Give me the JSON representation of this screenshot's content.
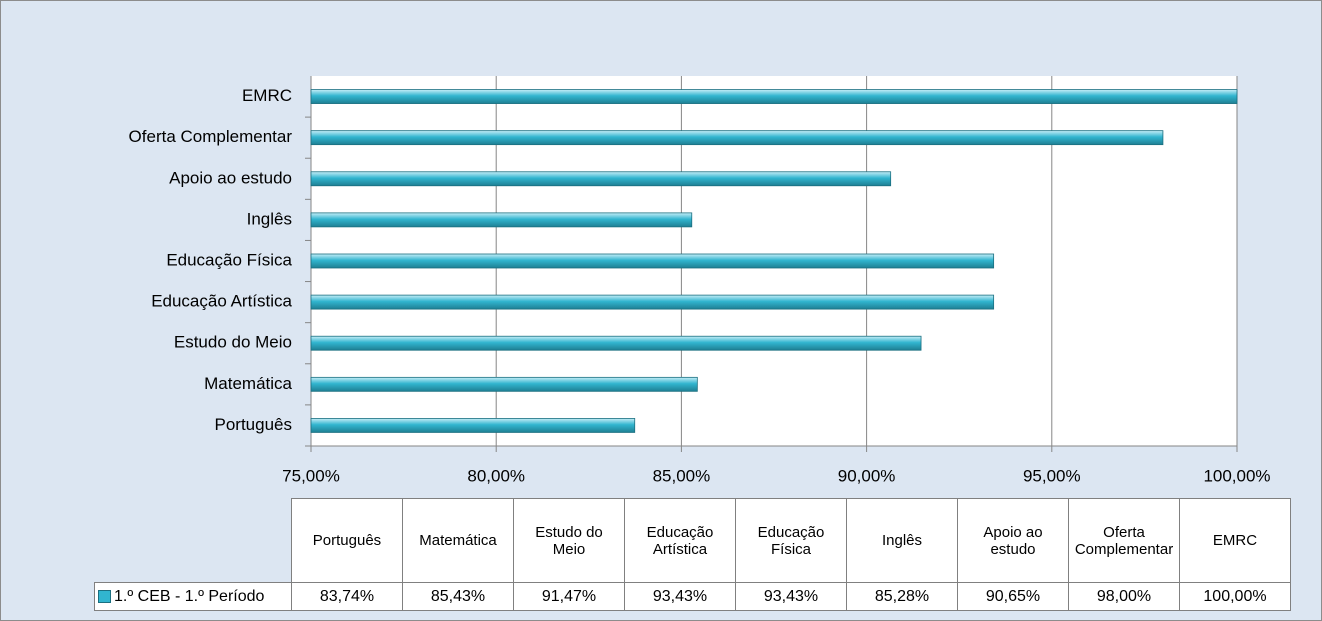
{
  "chart_data": {
    "type": "bar",
    "orientation": "horizontal",
    "categories": [
      "Português",
      "Matemática",
      "Estudo do Meio",
      "Educação Artística",
      "Educação Física",
      "Inglês",
      "Apoio ao estudo",
      "Oferta Complementar",
      "EMRC"
    ],
    "series": [
      {
        "name": "1.º CEB - 1.º Período",
        "color": "#31b5cf",
        "values": [
          83.74,
          85.43,
          91.47,
          93.43,
          93.43,
          85.28,
          90.65,
          98.0,
          100.0
        ],
        "value_labels": [
          "83,74%",
          "85,43%",
          "91,47%",
          "93,43%",
          "93,43%",
          "85,28%",
          "90,65%",
          "98,00%",
          "100,00%"
        ]
      }
    ],
    "xlim": [
      75,
      100
    ],
    "xticks": [
      {
        "value": 75,
        "label": "75,00%"
      },
      {
        "value": 80,
        "label": "80,00%"
      },
      {
        "value": 85,
        "label": "85,00%"
      },
      {
        "value": 90,
        "label": "90,00%"
      },
      {
        "value": 95,
        "label": "95,00%"
      },
      {
        "value": 100,
        "label": "100,00%"
      }
    ],
    "grid": true,
    "data_table": true
  }
}
